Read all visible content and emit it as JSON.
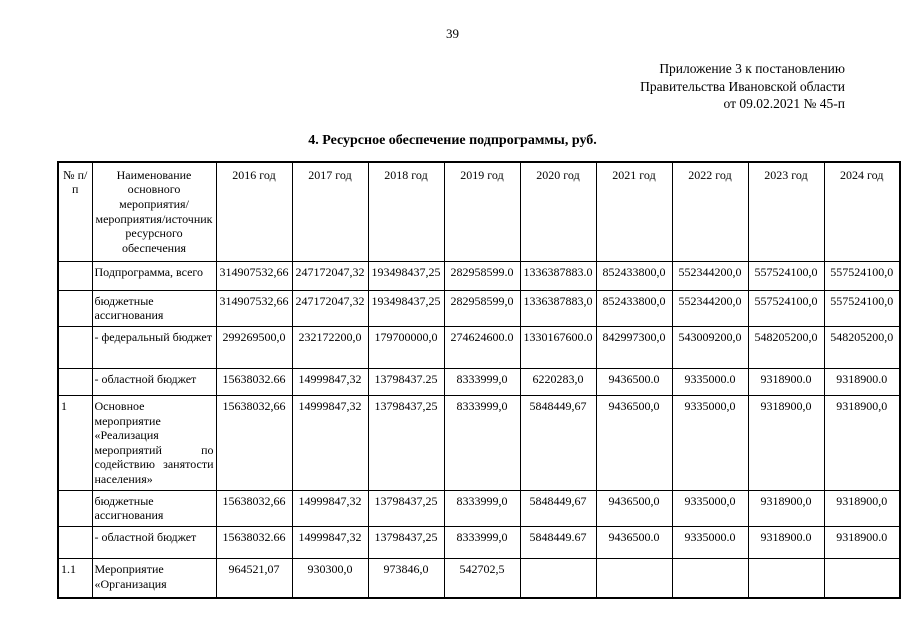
{
  "page": {
    "number": "39"
  },
  "appendix": {
    "lines": [
      "Приложение 3 к постановлению",
      "Правительства Ивановской области",
      "от 09.02.2021 № 45-п"
    ]
  },
  "title": "4. Ресурсное обеспечение подпрограммы, руб.",
  "table": {
    "headers": [
      "№ п/п",
      "Наименование основного мероприятия/мероприятия/источник ресурсного обеспечения",
      "2016 год",
      "2017 год",
      "2018 год",
      "2019 год",
      "2020 год",
      "2021 год",
      "2022 год",
      "2023 год",
      "2024 год"
    ],
    "rows": [
      {
        "num": "",
        "name": "Подпрограмма, всего",
        "values": [
          "314907532,66",
          "247172047,32",
          "193498437,25",
          "282958599.0",
          "1336387883.0",
          "852433800,0",
          "552344200,0",
          "557524100,0",
          "557524100,0"
        ]
      },
      {
        "num": "",
        "name": "бюджетные ассигнования",
        "values": [
          "314907532,66",
          "247172047,32",
          "193498437,25",
          "282958599,0",
          "1336387883,0",
          "852433800,0",
          "552344200,0",
          "557524100,0",
          "557524100,0"
        ]
      },
      {
        "num": "",
        "name": "- федеральный бюджет",
        "values": [
          "299269500,0",
          "232172200,0",
          "179700000,0",
          "274624600.0",
          "1330167600.0",
          "842997300,0",
          "543009200,0",
          "548205200,0",
          "548205200,0"
        ]
      },
      {
        "num": "",
        "name": "- областной бюджет",
        "values": [
          "15638032.66",
          "14999847,32",
          "13798437.25",
          "8333999,0",
          "6220283,0",
          "9436500.0",
          "9335000.0",
          "9318900.0",
          "9318900.0"
        ]
      },
      {
        "num": "1",
        "name": "Основное мероприятие «Реализация мероприятий по содействию занятости населения»",
        "values": [
          "15638032,66",
          "14999847,32",
          "13798437,25",
          "8333999,0",
          "5848449,67",
          "9436500,0",
          "9335000,0",
          "9318900,0",
          "9318900,0"
        ]
      },
      {
        "num": "",
        "name": "бюджетные ассигнования",
        "values": [
          "15638032,66",
          "14999847,32",
          "13798437,25",
          "8333999,0",
          "5848449,67",
          "9436500,0",
          "9335000,0",
          "9318900,0",
          "9318900,0"
        ]
      },
      {
        "num": "",
        "name": "- областной бюджет",
        "values": [
          "15638032.66",
          "14999847,32",
          "13798437,25",
          "8333999,0",
          "5848449.67",
          "9436500.0",
          "9335000.0",
          "9318900.0",
          "9318900.0"
        ]
      },
      {
        "num": "1.1",
        "name": "Мероприятие «Организация",
        "values": [
          "964521,07",
          "930300,0",
          "973846,0",
          "542702,5",
          "",
          "",
          "",
          "",
          ""
        ]
      }
    ]
  }
}
